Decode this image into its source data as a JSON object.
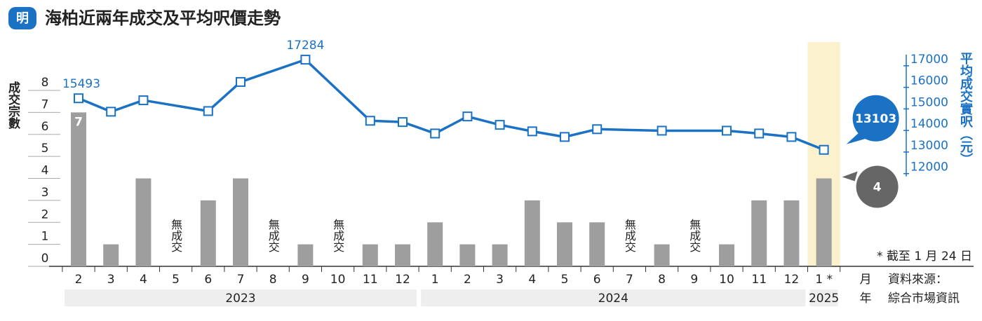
{
  "logo": "明",
  "chart_data": {
    "type": "bar-line",
    "title": "海柏近兩年成交及平均呎價走勢",
    "categories": [
      "2",
      "3",
      "4",
      "5",
      "6",
      "7",
      "8",
      "9",
      "10",
      "11",
      "12",
      "1",
      "2",
      "3",
      "4",
      "5",
      "6",
      "7",
      "8",
      "9",
      "10",
      "11",
      "12",
      "1 *"
    ],
    "years": [
      "2023",
      "2024",
      "2025"
    ],
    "x_label": "月",
    "year_label": "年",
    "y_label": "成交宗數",
    "y2_label": "平均成交實呎（元）",
    "ylim": [
      0,
      10.2
    ],
    "yticks": [
      0,
      1,
      2,
      3,
      4,
      5,
      6,
      7,
      8
    ],
    "y2lim": [
      7700,
      18100
    ],
    "y2ticks": [
      12000,
      13000,
      14000,
      15000,
      16000,
      17000
    ],
    "series": [
      {
        "name": "成交宗數",
        "color": "#9e9e9e",
        "values": [
          7,
          1,
          4,
          0,
          3,
          4,
          0,
          1,
          0,
          1,
          1,
          2,
          1,
          1,
          3,
          2,
          2,
          0,
          1,
          0,
          1,
          3,
          3,
          4
        ],
        "value_labels": [
          "7",
          null,
          null,
          "無成交",
          null,
          null,
          "無成交",
          null,
          "無成交",
          null,
          null,
          null,
          null,
          null,
          null,
          null,
          null,
          "無成交",
          null,
          "無成交",
          null,
          null,
          null,
          "4"
        ]
      },
      {
        "name": "平均成交實呎",
        "color": "#1b72c4",
        "axis": "y2",
        "values": [
          15493,
          14870,
          15400,
          null,
          14900,
          16250,
          null,
          17284,
          null,
          14450,
          14390,
          13860,
          14650,
          14260,
          13960,
          13700,
          14060,
          null,
          13990,
          null,
          13990,
          13860,
          13700,
          13103
        ],
        "value_labels": [
          "15493",
          null,
          null,
          null,
          null,
          null,
          null,
          "17284",
          null,
          null,
          null,
          null,
          null,
          null,
          null,
          null,
          null,
          null,
          null,
          null,
          null,
          null,
          null,
          "13103"
        ]
      }
    ],
    "highlight_color": "#fbf1cc",
    "note": "* 截至 1 月 24 日",
    "source_label": "資料來源：",
    "source": "綜合市場資訊"
  }
}
